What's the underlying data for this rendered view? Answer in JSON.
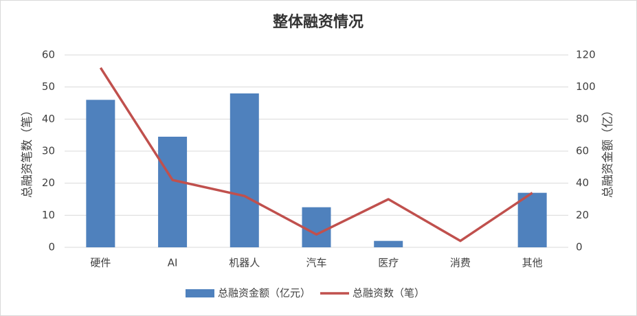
{
  "chart_data": {
    "type": "bar_line",
    "title": "整体融资情况",
    "y_label": "总融资笔数（笔）",
    "y2_label": "总融资金额（亿）",
    "categories": [
      "硬件",
      "AI",
      "机器人",
      "汽车",
      "医疗",
      "消费",
      "其他"
    ],
    "series": [
      {
        "name": "总融资金额（亿元）",
        "type": "bar",
        "axis": "y2",
        "color": "#4f81bd",
        "values": [
          92,
          69,
          96,
          25,
          4,
          0,
          34
        ]
      },
      {
        "name": "总融资数（笔）",
        "type": "line",
        "axis": "y",
        "color": "#c0504d",
        "values": [
          56,
          21,
          16,
          4,
          15,
          2,
          17
        ]
      }
    ],
    "ylim": [
      0,
      60
    ],
    "yticks": [
      0,
      10,
      20,
      30,
      40,
      50,
      60
    ],
    "y2lim": [
      0,
      120
    ],
    "y2ticks": [
      0,
      20,
      40,
      60,
      80,
      100,
      120
    ],
    "grid": true,
    "legend": "bottom"
  }
}
